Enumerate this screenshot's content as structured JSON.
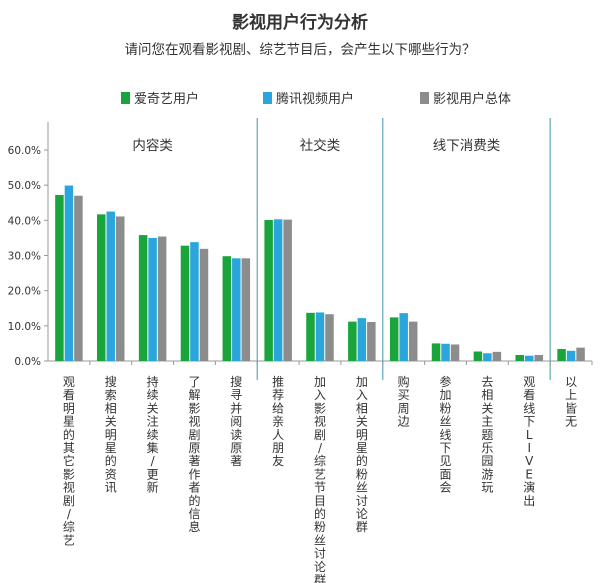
{
  "header": {
    "title": "影视用户行为分析",
    "subtitle": "请问您在观看影视剧、综艺节目后，会产生以下哪些行为？"
  },
  "colors": {
    "iqiyi": "#19a53b",
    "tencent": "#2aa6dc",
    "total": "#8c8c8c",
    "axis": "#999999",
    "divider": "#5fa8b8"
  },
  "chart_data": {
    "type": "bar",
    "title": "影视用户行为分析",
    "subtitle": "请问您在观看影视剧、综艺节目后，会产生以下哪些行为？",
    "legend_position": "top",
    "grid": false,
    "ylim": [
      0,
      60
    ],
    "yticks": [
      "0.0%",
      "10.0%",
      "20.0%",
      "30.0%",
      "40.0%",
      "50.0%",
      "60.0%"
    ],
    "groups": [
      {
        "label": "内容类",
        "count": 5
      },
      {
        "label": "社交类",
        "count": 3
      },
      {
        "label": "线下消费类",
        "count": 4
      },
      {
        "label": "",
        "count": 1
      }
    ],
    "categories": [
      "观看明星的其它影视剧/综艺",
      "搜索相关明星的资讯",
      "持续关注续集/更新",
      "了解影视剧原著作者的信息",
      "搜寻并阅读原著",
      "推荐给亲人朋友",
      "加入影视剧/综艺节目的粉丝讨论群",
      "加入相关明星的粉丝讨论群",
      "购买周边",
      "参加粉丝线下见面会",
      "去相关主题乐园游玩",
      "观看线下LIVE演出",
      "以上皆无"
    ],
    "series": [
      {
        "name": "爱奇艺用户",
        "values": [
          47.2,
          41.7,
          35.8,
          32.8,
          29.8,
          40.1,
          13.7,
          11.2,
          12.4,
          5.0,
          2.7,
          1.7,
          3.4
        ]
      },
      {
        "name": "腾讯视频用户",
        "values": [
          49.9,
          42.5,
          35.0,
          33.8,
          29.2,
          40.3,
          13.8,
          12.2,
          13.6,
          4.9,
          2.2,
          1.5,
          2.9
        ]
      },
      {
        "name": "影视用户总体",
        "values": [
          47.0,
          41.1,
          35.4,
          31.9,
          29.2,
          40.2,
          13.3,
          11.1,
          11.2,
          4.7,
          2.6,
          1.7,
          3.8
        ]
      }
    ]
  }
}
